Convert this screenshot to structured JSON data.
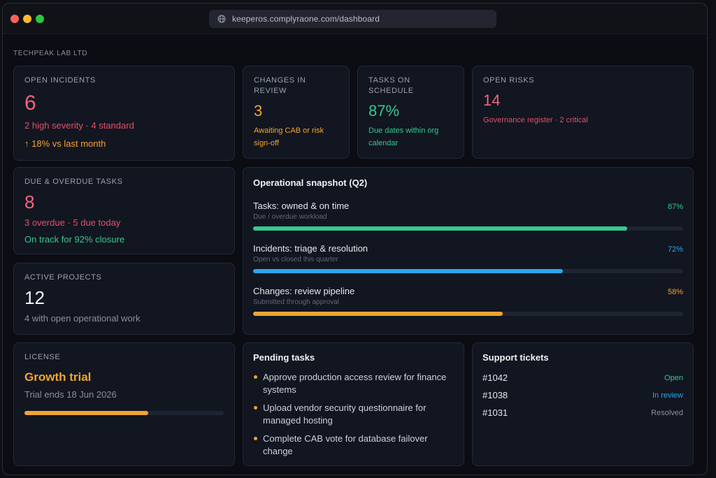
{
  "browser": {
    "url": "keeperos.complyraone.com/dashboard"
  },
  "org_name": "TECHPEAK LAB LTD",
  "open_incidents": {
    "label": "OPEN INCIDENTS",
    "value": "6",
    "detail": "2 high severity · 4 standard",
    "trend": "↑ 18% vs last month"
  },
  "changes_in_review": {
    "label": "CHANGES IN REVIEW",
    "value": "3",
    "detail": "Awaiting CAB or risk sign-off"
  },
  "tasks_on_schedule": {
    "label": "TASKS ON SCHEDULE",
    "value": "87%",
    "detail": "Due dates within org calendar"
  },
  "open_risks": {
    "label": "OPEN RISKS",
    "value": "14",
    "detail": "Governance register · 2 critical"
  },
  "due_overdue_tasks": {
    "label": "DUE & OVERDUE TASKS",
    "value": "8",
    "detail": "3 overdue · 5 due today",
    "status": "On track for 92% closure"
  },
  "active_projects": {
    "label": "ACTIVE PROJECTS",
    "value": "12",
    "detail": "4 with open operational work"
  },
  "snapshot": {
    "title": "Operational snapshot (Q2)",
    "rows": [
      {
        "name": "Tasks: owned & on time",
        "desc": "Due / overdue workload",
        "pct_label": "87%",
        "pct": 87,
        "color": "#34c98e"
      },
      {
        "name": "Incidents: triage & resolution",
        "desc": "Open vs closed this quarter",
        "pct_label": "72%",
        "pct": 72,
        "color": "#2ba7ec"
      },
      {
        "name": "Changes: review pipeline",
        "desc": "Submitted through approval",
        "pct_label": "58%",
        "pct": 58,
        "color": "#f0a531"
      }
    ]
  },
  "license": {
    "label": "LICENSE",
    "plan": "Growth trial",
    "detail": "Trial ends 18 Jun 2026",
    "progress_pct": 62
  },
  "pending_tasks": {
    "title": "Pending tasks",
    "items": [
      "Approve production access review for finance systems",
      "Upload vendor security questionnaire for managed hosting",
      "Complete CAB vote for database failover change"
    ]
  },
  "support_tickets": {
    "title": "Support tickets",
    "items": [
      {
        "id": "#1042",
        "status": "Open",
        "color": "#34c98e"
      },
      {
        "id": "#1038",
        "status": "In review",
        "color": "#2ba7ec"
      },
      {
        "id": "#1031",
        "status": "Resolved",
        "color": "#8a909c"
      }
    ]
  },
  "colors": {
    "accent_pink": "#f0667d",
    "accent_orange": "#f0a531",
    "accent_green": "#34c98e",
    "accent_blue": "#2ba7ec",
    "card_bg": "#121621"
  }
}
